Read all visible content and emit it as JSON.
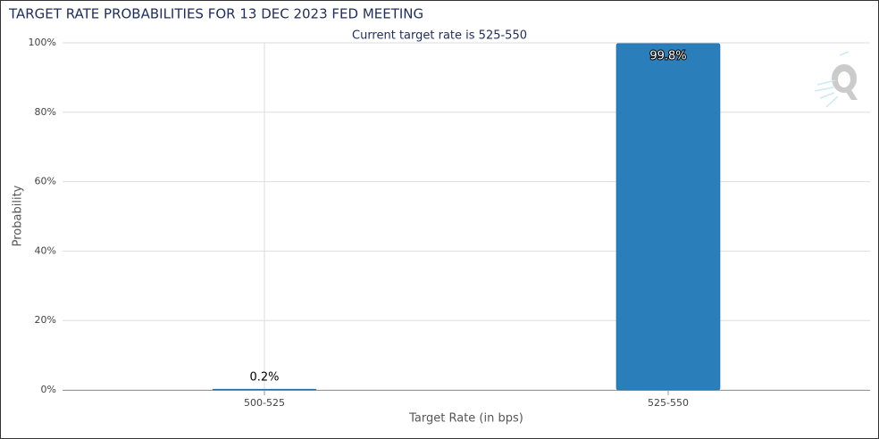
{
  "chart_data": {
    "type": "bar",
    "title": "TARGET RATE PROBABILITIES FOR 13 DEC 2023 FED MEETING",
    "subtitle": "Current target rate is 525-550",
    "xlabel": "Target Rate (in bps)",
    "ylabel": "Probability",
    "categories": [
      "500-525",
      "525-550"
    ],
    "values": [
      0.2,
      99.8
    ],
    "value_labels": [
      "0.2%",
      "99.8%"
    ],
    "color": "#2a7fba",
    "ylim": [
      0,
      100
    ],
    "yticks": [
      {
        "value": 0,
        "label": "0%"
      },
      {
        "value": 20,
        "label": "20%"
      },
      {
        "value": 40,
        "label": "40%"
      },
      {
        "value": 60,
        "label": "60%"
      },
      {
        "value": 80,
        "label": "80%"
      },
      {
        "value": 100,
        "label": "100%"
      }
    ],
    "grid": true
  }
}
